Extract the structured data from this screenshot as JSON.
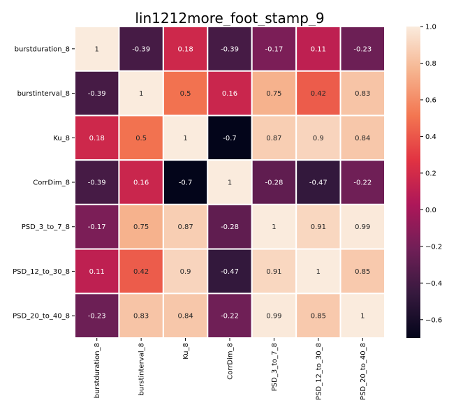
{
  "chart_data": {
    "type": "heatmap",
    "title": "lin1212more_foot_stamp_9",
    "xlabel": "",
    "ylabel": "",
    "row_labels": [
      "burstduration_8",
      "burstinterval_8",
      "Ku_8",
      "CorrDim_8",
      "PSD_3_to_7_8",
      "PSD_12_to_30_8",
      "PSD_20_to_40_8"
    ],
    "col_labels": [
      "burstduration_8",
      "burstinterval_8",
      "Ku_8",
      "CorrDim_8",
      "PSD_3_to_7_8",
      "PSD_12_to_30_8",
      "PSD_20_to_40_8"
    ],
    "values": [
      [
        1,
        -0.39,
        0.18,
        -0.39,
        -0.17,
        0.11,
        -0.23
      ],
      [
        -0.39,
        1,
        0.5,
        0.16,
        0.75,
        0.42,
        0.83
      ],
      [
        0.18,
        0.5,
        1,
        -0.7,
        0.87,
        0.9,
        0.84
      ],
      [
        -0.39,
        0.16,
        -0.7,
        1,
        -0.28,
        -0.47,
        -0.22
      ],
      [
        -0.17,
        0.75,
        0.87,
        -0.28,
        1,
        0.91,
        0.99
      ],
      [
        0.11,
        0.42,
        0.9,
        -0.47,
        0.91,
        1,
        0.85
      ],
      [
        -0.23,
        0.83,
        0.84,
        -0.22,
        0.99,
        0.85,
        1
      ]
    ],
    "cell_labels": [
      [
        "1",
        "-0.39",
        "0.18",
        "-0.39",
        "-0.17",
        "0.11",
        "-0.23"
      ],
      [
        "-0.39",
        "1",
        "0.5",
        "0.16",
        "0.75",
        "0.42",
        "0.83"
      ],
      [
        "0.18",
        "0.5",
        "1",
        "-0.7",
        "0.87",
        "0.9",
        "0.84"
      ],
      [
        "-0.39",
        "0.16",
        "-0.7",
        "1",
        "-0.28",
        "-0.47",
        "-0.22"
      ],
      [
        "-0.17",
        "0.75",
        "0.87",
        "-0.28",
        "1",
        "0.91",
        "0.99"
      ],
      [
        "0.11",
        "0.42",
        "0.9",
        "-0.47",
        "0.91",
        "1",
        "0.85"
      ],
      [
        "-0.23",
        "0.83",
        "0.84",
        "-0.22",
        "0.99",
        "0.85",
        "1"
      ]
    ],
    "colorbar": {
      "min": -0.7,
      "max": 1.0,
      "ticks": [
        -0.6,
        -0.4,
        -0.2,
        0.0,
        0.2,
        0.4,
        0.6,
        0.8,
        1.0
      ],
      "tick_labels": [
        "−0.6",
        "−0.4",
        "−0.2",
        "0.0",
        "0.2",
        "0.4",
        "0.6",
        "0.8",
        "1.0"
      ],
      "colormap": "rocket",
      "colormap_stops": [
        "#03051a",
        "#36193e",
        "#701f57",
        "#ad1759",
        "#e13342",
        "#f37651",
        "#f6b48f",
        "#faebdd"
      ]
    },
    "grid": true,
    "legend": "colorbar-right"
  }
}
